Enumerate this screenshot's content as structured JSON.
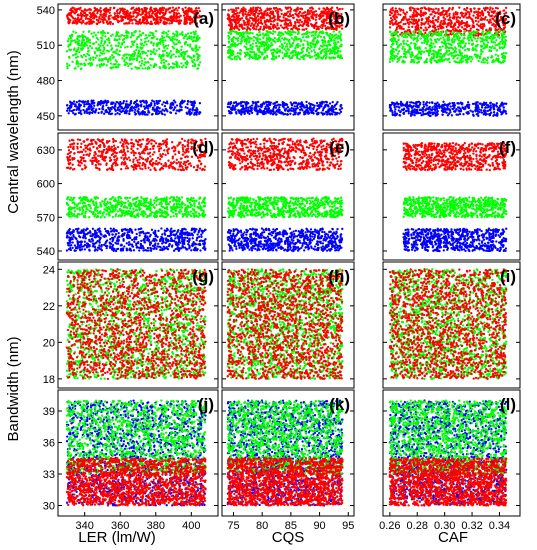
{
  "figure": {
    "ylabel_top": "Central wavelength (nm)",
    "ylabel_bottom": "Bandwidth (nm)",
    "columns": [
      "LER (lm/W)",
      "CQS",
      "CAF"
    ]
  },
  "colors": {
    "red": "#ff0000",
    "green": "#00ff00",
    "blue": "#0000ff"
  },
  "chart_data": [
    {
      "type": "scatter",
      "panel": "(a)",
      "xlabel": "LER (lm/W)",
      "xlim": [
        325,
        415
      ],
      "ylim": [
        438,
        545
      ],
      "yticks": [
        450,
        480,
        510,
        540
      ],
      "xticks": [],
      "series": [
        {
          "color": "red",
          "clouds": [
            {
              "x": [
                330,
                405
              ],
              "y": [
                528,
                542
              ],
              "n": 650
            }
          ]
        },
        {
          "color": "green",
          "clouds": [
            {
              "x": [
                330,
                405
              ],
              "y": [
                490,
                522
              ],
              "n": 650
            }
          ]
        },
        {
          "color": "blue",
          "clouds": [
            {
              "x": [
                330,
                405
              ],
              "y": [
                451,
                463
              ],
              "n": 420
            }
          ]
        }
      ]
    },
    {
      "type": "scatter",
      "panel": "(b)",
      "xlabel": "CQS",
      "xlim": [
        73,
        96
      ],
      "ylim": [
        438,
        545
      ],
      "yticks": [
        450,
        480,
        510,
        540
      ],
      "xticks": [],
      "series": [
        {
          "color": "red",
          "clouds": [
            {
              "x": [
                74,
                94
              ],
              "y": [
                523,
                542
              ],
              "n": 650
            }
          ]
        },
        {
          "color": "green",
          "clouds": [
            {
              "x": [
                74,
                94
              ],
              "y": [
                498,
                522
              ],
              "n": 650
            }
          ]
        },
        {
          "color": "blue",
          "clouds": [
            {
              "x": [
                74,
                94
              ],
              "y": [
                451,
                462
              ],
              "n": 420
            }
          ]
        }
      ]
    },
    {
      "type": "scatter",
      "panel": "(c)",
      "xlabel": "CAF",
      "xlim": [
        0.255,
        0.355
      ],
      "ylim": [
        438,
        545
      ],
      "yticks": [
        450,
        480,
        510,
        540
      ],
      "xticks": [],
      "series": [
        {
          "color": "red",
          "clouds": [
            {
              "x": [
                0.26,
                0.345
              ],
              "y": [
                518,
                542
              ],
              "n": 650
            }
          ]
        },
        {
          "color": "green",
          "clouds": [
            {
              "x": [
                0.26,
                0.345
              ],
              "y": [
                495,
                522
              ],
              "n": 650
            }
          ]
        },
        {
          "color": "blue",
          "clouds": [
            {
              "x": [
                0.26,
                0.345
              ],
              "y": [
                450,
                462
              ],
              "n": 420
            }
          ]
        }
      ]
    },
    {
      "type": "scatter",
      "panel": "(d)",
      "xlabel": "LER (lm/W)",
      "xlim": [
        325,
        415
      ],
      "ylim": [
        532,
        645
      ],
      "yticks": [
        540,
        570,
        600,
        630
      ],
      "xticks": [],
      "series": [
        {
          "color": "red",
          "clouds": [
            {
              "x": [
                330,
                408
              ],
              "y": [
                612,
                640
              ],
              "n": 600
            }
          ]
        },
        {
          "color": "green",
          "clouds": [
            {
              "x": [
                330,
                408
              ],
              "y": [
                570,
                588
              ],
              "n": 650
            }
          ]
        },
        {
          "color": "blue",
          "clouds": [
            {
              "x": [
                330,
                408
              ],
              "y": [
                540,
                560
              ],
              "n": 650
            }
          ]
        }
      ]
    },
    {
      "type": "scatter",
      "panel": "(e)",
      "xlabel": "CQS",
      "xlim": [
        73,
        96
      ],
      "ylim": [
        532,
        645
      ],
      "yticks": [
        540,
        570,
        600,
        630
      ],
      "xticks": [],
      "series": [
        {
          "color": "red",
          "clouds": [
            {
              "x": [
                74,
                94
              ],
              "y": [
                612,
                640
              ],
              "n": 650
            }
          ]
        },
        {
          "color": "green",
          "clouds": [
            {
              "x": [
                74,
                94
              ],
              "y": [
                570,
                588
              ],
              "n": 650
            }
          ]
        },
        {
          "color": "blue",
          "clouds": [
            {
              "x": [
                74,
                94
              ],
              "y": [
                540,
                560
              ],
              "n": 650
            }
          ]
        }
      ]
    },
    {
      "type": "scatter",
      "panel": "(f)",
      "xlabel": "CAF",
      "xlim": [
        0.255,
        0.355
      ],
      "ylim": [
        532,
        645
      ],
      "yticks": [
        540,
        570,
        600,
        630
      ],
      "xticks": [],
      "series": [
        {
          "color": "red",
          "clouds": [
            {
              "x": [
                0.27,
                0.345
              ],
              "y": [
                612,
                636
              ],
              "n": 650
            }
          ]
        },
        {
          "color": "green",
          "clouds": [
            {
              "x": [
                0.27,
                0.345
              ],
              "y": [
                570,
                588
              ],
              "n": 650
            }
          ]
        },
        {
          "color": "blue",
          "clouds": [
            {
              "x": [
                0.27,
                0.345
              ],
              "y": [
                540,
                560
              ],
              "n": 650
            }
          ]
        }
      ]
    },
    {
      "type": "scatter",
      "panel": "(g)",
      "xlabel": "LER (lm/W)",
      "xlim": [
        325,
        415
      ],
      "ylim": [
        17.5,
        24.4
      ],
      "yticks": [
        18,
        20,
        22,
        24
      ],
      "xticks": [],
      "series": [
        {
          "color": "green",
          "clouds": [
            {
              "x": [
                330,
                408
              ],
              "y": [
                18,
                24
              ],
              "n": 1500
            }
          ]
        },
        {
          "color": "red",
          "clouds": [
            {
              "x": [
                330,
                408
              ],
              "y": [
                18,
                24
              ],
              "n": 1600
            }
          ]
        }
      ]
    },
    {
      "type": "scatter",
      "panel": "(h)",
      "xlabel": "CQS",
      "xlim": [
        73,
        96
      ],
      "ylim": [
        17.5,
        24.4
      ],
      "yticks": [
        18,
        20,
        22,
        24
      ],
      "xticks": [],
      "series": [
        {
          "color": "green",
          "clouds": [
            {
              "x": [
                74,
                94
              ],
              "y": [
                18,
                24
              ],
              "n": 1500
            }
          ]
        },
        {
          "color": "red",
          "clouds": [
            {
              "x": [
                74,
                94
              ],
              "y": [
                18,
                24
              ],
              "n": 1500
            }
          ]
        }
      ]
    },
    {
      "type": "scatter",
      "panel": "(i)",
      "xlabel": "CAF",
      "xlim": [
        0.255,
        0.355
      ],
      "ylim": [
        17.5,
        24.4
      ],
      "yticks": [
        18,
        20,
        22,
        24
      ],
      "xticks": [],
      "series": [
        {
          "color": "green",
          "clouds": [
            {
              "x": [
                0.26,
                0.345
              ],
              "y": [
                18,
                24
              ],
              "n": 1500
            }
          ]
        },
        {
          "color": "red",
          "clouds": [
            {
              "x": [
                0.26,
                0.345
              ],
              "y": [
                18,
                24
              ],
              "n": 1500
            }
          ]
        }
      ]
    },
    {
      "type": "scatter",
      "panel": "(j)",
      "xlabel": "LER (lm/W)",
      "xlim": [
        325,
        415
      ],
      "ylim": [
        29,
        41
      ],
      "yticks": [
        30,
        33,
        36,
        39
      ],
      "xticks": [
        340,
        360,
        380,
        400
      ],
      "series": [
        {
          "color": "blue",
          "clouds": [
            {
              "x": [
                330,
                408
              ],
              "y": [
                30,
                40
              ],
              "n": 1300
            }
          ]
        },
        {
          "color": "green",
          "clouds": [
            {
              "x": [
                330,
                408
              ],
              "y": [
                33,
                40
              ],
              "n": 1300
            }
          ]
        },
        {
          "color": "red",
          "clouds": [
            {
              "x": [
                330,
                408
              ],
              "y": [
                30,
                34.5
              ],
              "n": 1700
            }
          ]
        }
      ]
    },
    {
      "type": "scatter",
      "panel": "(k)",
      "xlabel": "CQS",
      "xlim": [
        73,
        96
      ],
      "ylim": [
        29,
        41
      ],
      "yticks": [
        30,
        33,
        36,
        39
      ],
      "xticks": [
        75,
        80,
        85,
        90,
        95
      ],
      "series": [
        {
          "color": "blue",
          "clouds": [
            {
              "x": [
                74,
                94
              ],
              "y": [
                30,
                40
              ],
              "n": 1300
            }
          ]
        },
        {
          "color": "green",
          "clouds": [
            {
              "x": [
                74,
                94
              ],
              "y": [
                33,
                40
              ],
              "n": 1300
            }
          ]
        },
        {
          "color": "red",
          "clouds": [
            {
              "x": [
                74,
                94
              ],
              "y": [
                30,
                34.5
              ],
              "n": 1700
            }
          ]
        }
      ]
    },
    {
      "type": "scatter",
      "panel": "(l)",
      "xlabel": "CAF",
      "xlim": [
        0.255,
        0.355
      ],
      "ylim": [
        29,
        41
      ],
      "yticks": [
        30,
        33,
        36,
        39
      ],
      "xticks": [
        0.26,
        0.28,
        0.3,
        0.32,
        0.34
      ],
      "series": [
        {
          "color": "blue",
          "clouds": [
            {
              "x": [
                0.26,
                0.345
              ],
              "y": [
                30,
                40
              ],
              "n": 1300
            }
          ]
        },
        {
          "color": "green",
          "clouds": [
            {
              "x": [
                0.26,
                0.345
              ],
              "y": [
                33,
                40
              ],
              "n": 1300
            }
          ]
        },
        {
          "color": "red",
          "clouds": [
            {
              "x": [
                0.26,
                0.345
              ],
              "y": [
                30,
                34.5
              ],
              "n": 1700
            }
          ]
        }
      ]
    }
  ]
}
